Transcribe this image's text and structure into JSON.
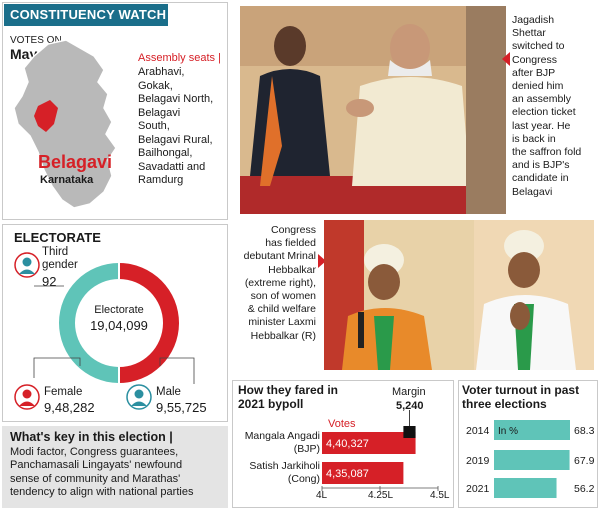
{
  "header": {
    "title": "CONSTITUENCY WATCH"
  },
  "votes_on": {
    "label": "VOTES ON",
    "date": "May 7"
  },
  "map": {
    "district": "Belagavi",
    "state": "Karnataka"
  },
  "assembly": {
    "heading": "Assembly seats |",
    "lines": [
      "Arabhavi,",
      "Gokak,",
      "Belagavi North,",
      "Belagavi",
      "South,",
      "Belagavi Rural,",
      "Bailhongal,",
      "Savadatti and",
      "Ramdurg"
    ]
  },
  "photo1_caption": [
    "Jagadish",
    "Shettar",
    "switched to",
    "Congress",
    "after BJP",
    "denied him",
    "an assembly",
    "election ticket",
    "last year. He",
    "is back in",
    "the saffron fold",
    "and is BJP's",
    "candidate in",
    "Belagavi"
  ],
  "photo2_caption": [
    "Congress",
    "has fielded",
    "debutant Mrinal",
    "Hebbalkar",
    "(extreme right),",
    "son of women",
    "& child welfare",
    "minister Laxmi",
    "Hebbalkar (R)"
  ],
  "electorate": {
    "heading": "ELECTORATE",
    "center_label": "Electorate",
    "center_value": "19,04,099",
    "third_gender_label": [
      "Third",
      "gender"
    ],
    "third_gender_value": "92",
    "female_label": "Female",
    "female_value": "9,48,282",
    "male_label": "Male",
    "male_value": "9,55,725"
  },
  "key": {
    "heading": "What's key in this election |",
    "lines": [
      "Modi factor, Congress guarantees,",
      "Panchamasali Lingayats' newfound",
      "sense of community and Marathas'",
      "tendency to align with national parties"
    ]
  },
  "bypoll": {
    "heading": [
      "How they fared in",
      "2021 bypoll"
    ],
    "margin_label": "Margin",
    "margin_value": "5,240",
    "votes_label": "Votes",
    "candidates": [
      {
        "name": "Mangala Angadi",
        "party": "(BJP)",
        "votes_text": "4,40,327",
        "votes": 440327
      },
      {
        "name": "Satish Jarkiholi",
        "party": "(Cong)",
        "votes_text": "4,35,087",
        "votes": 435087
      }
    ],
    "axis": [
      "4L",
      "4.25L",
      "4.5L"
    ]
  },
  "turnout": {
    "heading": [
      "Voter turnout in past",
      "three elections"
    ],
    "unit_label": "In %",
    "rows": [
      {
        "year": "2014",
        "value": 68.3,
        "value_text": "68.3"
      },
      {
        "year": "2019",
        "value": 67.9,
        "value_text": "67.9"
      },
      {
        "year": "2021",
        "value": 56.2,
        "value_text": "56.2"
      }
    ]
  },
  "colors": {
    "accent_red": "#d62027",
    "teal": "#2b8fa0",
    "turnout_bar": "#5fc4b8",
    "header": "#1a6e8a"
  },
  "chart_data": [
    {
      "type": "pie",
      "title": "Electorate",
      "categories": [
        "Female",
        "Male",
        "Third gender"
      ],
      "values": [
        948282,
        955725,
        92
      ]
    },
    {
      "type": "bar",
      "title": "How they fared in 2021 bypoll",
      "categories": [
        "Mangala Angadi (BJP)",
        "Satish Jarkiholi (Cong)"
      ],
      "values": [
        440327,
        435087
      ],
      "xlim": [
        400000,
        450000
      ],
      "tick_labels": [
        "4L",
        "4.25L",
        "4.5L"
      ]
    },
    {
      "type": "bar",
      "title": "Voter turnout in past three elections",
      "categories": [
        "2014",
        "2019",
        "2021"
      ],
      "values": [
        68.3,
        67.9,
        56.2
      ],
      "ylabel": "In %"
    }
  ]
}
